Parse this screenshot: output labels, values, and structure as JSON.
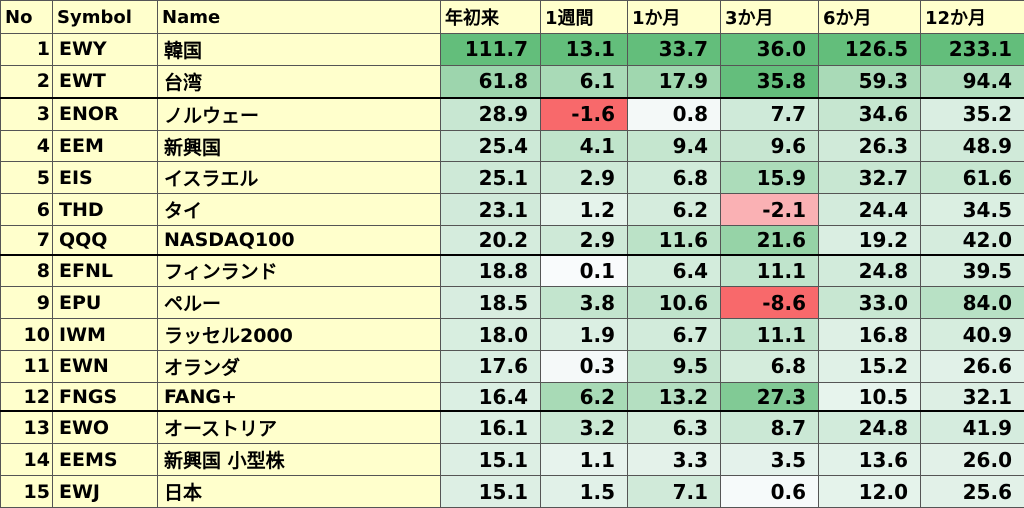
{
  "table": {
    "headers": [
      "No",
      "Symbol",
      "Name",
      "年初来",
      "1週間",
      "1か月",
      "3か月",
      "6か月",
      "12か月"
    ],
    "rows": [
      [
        "1",
        "EWY",
        "韓国",
        "111.7",
        "13.1",
        "33.7",
        "36.0",
        "126.5",
        "233.1"
      ],
      [
        "2",
        "EWT",
        "台湾",
        "61.8",
        "6.1",
        "17.9",
        "35.8",
        "59.3",
        "94.4"
      ],
      [
        "3",
        "ENOR",
        "ノルウェー",
        "28.9",
        "-1.6",
        "0.8",
        "7.7",
        "34.6",
        "35.2"
      ],
      [
        "4",
        "EEM",
        "新興国",
        "25.4",
        "4.1",
        "9.4",
        "9.6",
        "26.3",
        "48.9"
      ],
      [
        "5",
        "EIS",
        "イスラエル",
        "25.1",
        "2.9",
        "6.8",
        "15.9",
        "32.7",
        "61.6"
      ],
      [
        "6",
        "THD",
        "タイ",
        "23.1",
        "1.2",
        "6.2",
        "-2.1",
        "24.4",
        "34.5"
      ],
      [
        "7",
        "QQQ",
        "NASDAQ100",
        "20.2",
        "2.9",
        "11.6",
        "21.6",
        "19.2",
        "42.0"
      ],
      [
        "8",
        "EFNL",
        "フィンランド",
        "18.8",
        "0.1",
        "6.4",
        "11.1",
        "24.8",
        "39.5"
      ],
      [
        "9",
        "EPU",
        "ペルー",
        "18.5",
        "3.8",
        "10.6",
        "-8.6",
        "33.0",
        "84.0"
      ],
      [
        "10",
        "IWM",
        "ラッセル2000",
        "18.0",
        "1.9",
        "6.7",
        "11.1",
        "16.8",
        "40.9"
      ],
      [
        "11",
        "EWN",
        "オランダ",
        "17.6",
        "0.3",
        "9.5",
        "6.8",
        "15.2",
        "26.6"
      ],
      [
        "12",
        "FNGS",
        "FANG+",
        "16.4",
        "6.2",
        "13.2",
        "27.3",
        "10.5",
        "32.1"
      ],
      [
        "13",
        "EWO",
        "オーストリア",
        "16.1",
        "3.2",
        "6.3",
        "8.7",
        "24.8",
        "41.9"
      ],
      [
        "14",
        "EEMS",
        "新興国 小型株",
        "15.1",
        "1.1",
        "3.3",
        "3.5",
        "13.6",
        "26.0"
      ],
      [
        "15",
        "EWJ",
        "日本",
        "15.1",
        "1.5",
        "7.1",
        "0.6",
        "12.0",
        "25.6"
      ]
    ]
  }
}
